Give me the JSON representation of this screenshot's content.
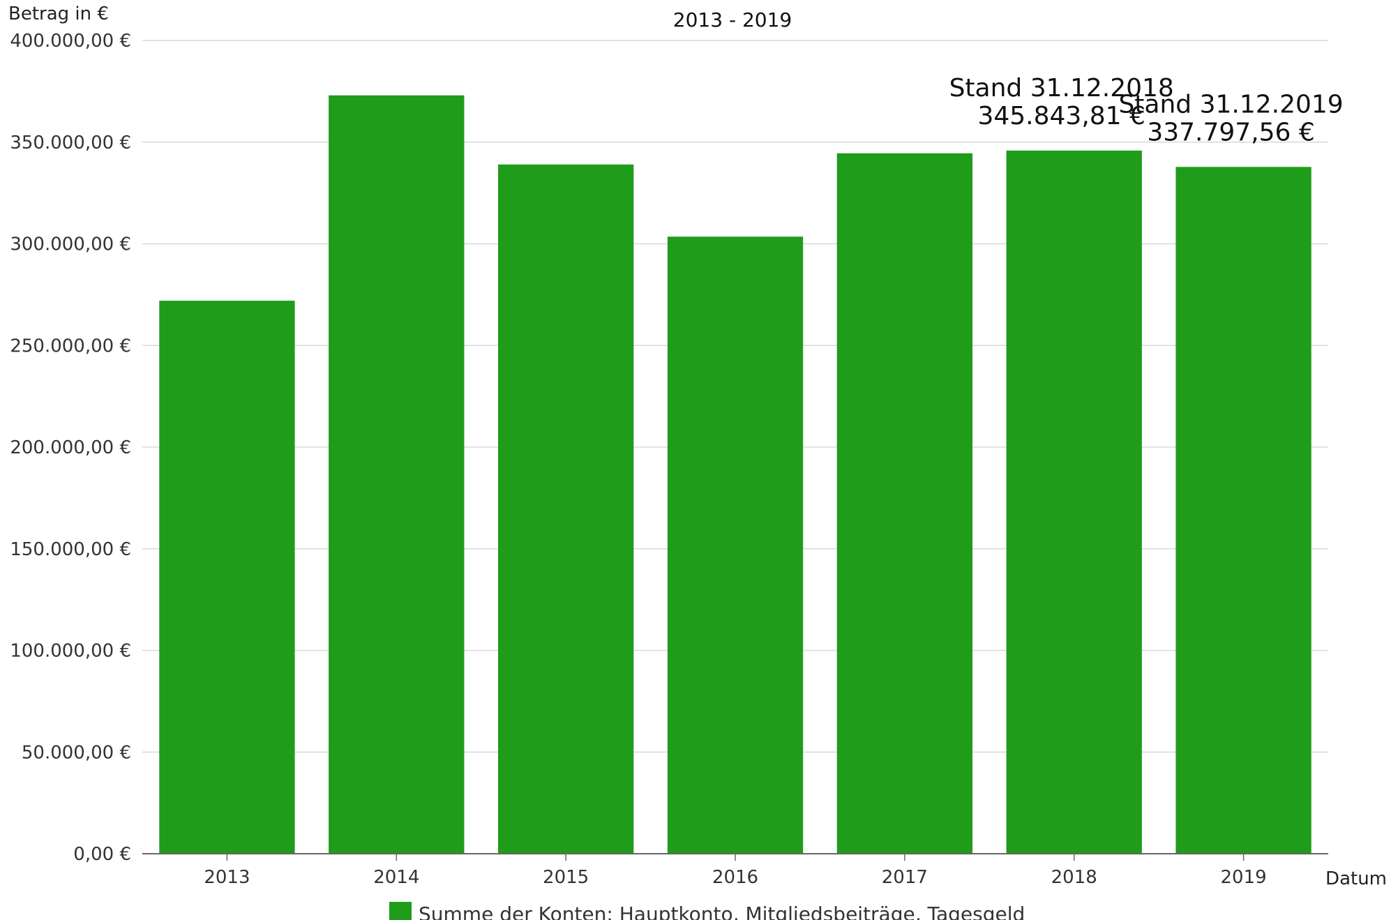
{
  "chart_data": {
    "type": "bar",
    "title": "2013 - 2019",
    "ylabel": "Betrag in €",
    "xlabel": "Datum",
    "categories": [
      "2013",
      "2014",
      "2015",
      "2016",
      "2017",
      "2018",
      "2019"
    ],
    "series": [
      {
        "name": "Summe der Konten: Hauptkonto, Mitgliedsbeiträge, Tagesgeld",
        "color": "#1e9c1a",
        "values": [
          272000,
          373000,
          339000,
          303500,
          344500,
          345843.81,
          337797.56
        ]
      }
    ],
    "ylim": [
      0,
      400000
    ],
    "yticks": [
      0,
      50000,
      100000,
      150000,
      200000,
      250000,
      300000,
      350000,
      400000
    ],
    "ytick_labels": [
      "0,00 €",
      "50.000,00 €",
      "100.000,00 €",
      "150.000,00 €",
      "200.000,00 €",
      "250.000,00 €",
      "300.000,00 €",
      "350.000,00 €",
      "400.000,00 €"
    ],
    "grid": true,
    "legend_position": "bottom",
    "annotations": [
      {
        "category": "2018",
        "line1": "Stand 31.12.2018",
        "line2": "345.843,81 €"
      },
      {
        "category": "2019",
        "line1": "Stand 31.12.2019",
        "line2": "337.797,56 €"
      }
    ]
  }
}
